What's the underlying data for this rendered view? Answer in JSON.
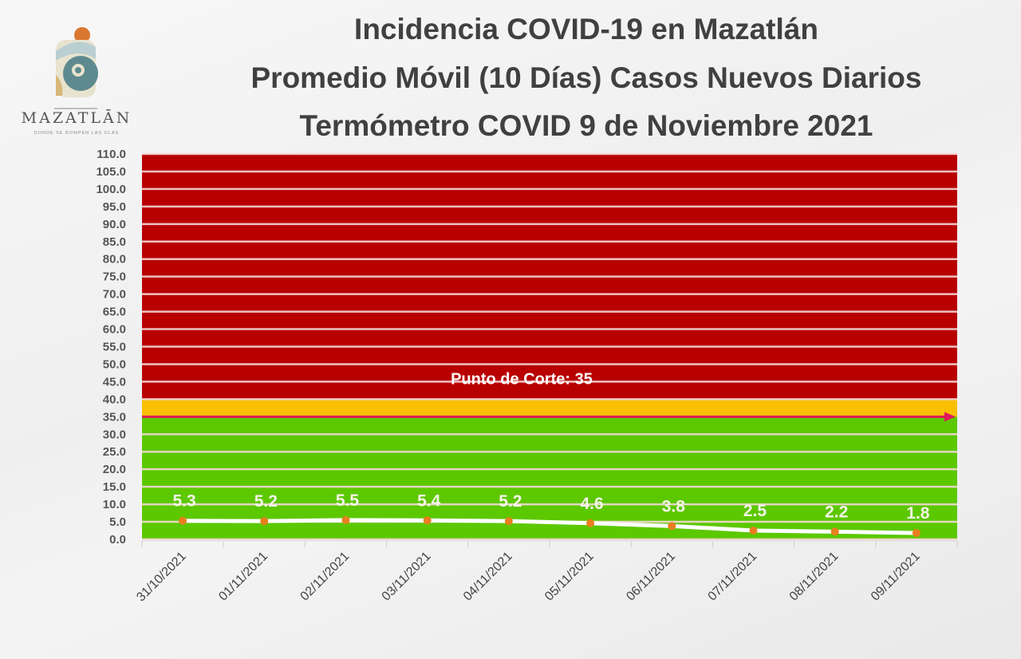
{
  "logo": {
    "name": "MAZATLĀN",
    "tagline": "DONDE SE ROMPEN LAS OLAS"
  },
  "titles": [
    "Incidencia COVID-19 en Mazatlán",
    "Promedio Móvil (10 Días) Casos Nuevos Diarios",
    "Termómetro COVID 9 de Noviembre 2021"
  ],
  "chart_data": {
    "type": "line",
    "title": "Incidencia COVID-19 en Mazatlán / Promedio Móvil (10 Días) Casos Nuevos Diarios / Termómetro COVID 9 de Noviembre 2021",
    "categories": [
      "31/10/2021",
      "01/11/2021",
      "02/11/2021",
      "03/11/2021",
      "04/11/2021",
      "05/11/2021",
      "06/11/2021",
      "07/11/2021",
      "08/11/2021",
      "09/11/2021"
    ],
    "values": [
      5.3,
      5.2,
      5.5,
      5.4,
      5.2,
      4.6,
      3.8,
      2.5,
      2.2,
      1.8
    ],
    "data_labels": [
      "5.3",
      "5.2",
      "5.5",
      "5.4",
      "5.2",
      "4.6",
      "3.8",
      "2.5",
      "2.2",
      "1.8"
    ],
    "ylim": [
      0,
      110
    ],
    "ytick_step": 5,
    "ytick_labels": [
      "0.0",
      "5.0",
      "10.0",
      "15.0",
      "20.0",
      "25.0",
      "30.0",
      "35.0",
      "40.0",
      "45.0",
      "50.0",
      "55.0",
      "60.0",
      "65.0",
      "70.0",
      "75.0",
      "80.0",
      "85.0",
      "90.0",
      "95.0",
      "100.0",
      "105.0",
      "110.0"
    ],
    "grid": true,
    "bands": [
      {
        "from": 0,
        "to": 35,
        "color": "#5cc800"
      },
      {
        "from": 35,
        "to": 40,
        "color": "#f9bf00"
      },
      {
        "from": 40,
        "to": 110,
        "color": "#b80000"
      }
    ],
    "cutoff": {
      "value": 35,
      "label": "Punto de Corte: 35",
      "color": "#e0185a"
    },
    "line_color": "#ffffff",
    "marker_color": "#e87f1f",
    "xlabel": "",
    "ylabel": ""
  }
}
